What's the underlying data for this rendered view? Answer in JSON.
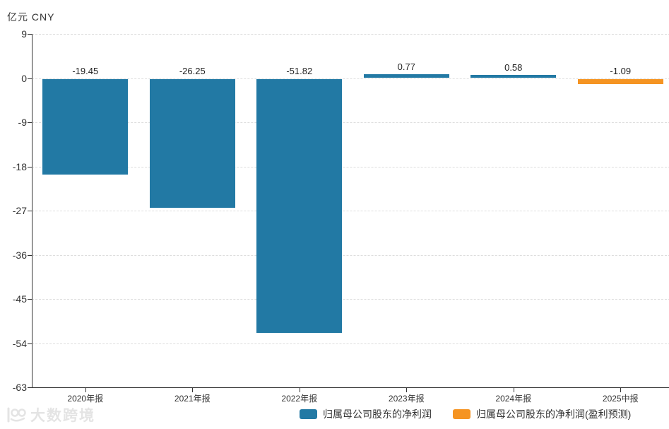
{
  "header": {
    "unit_label": "亿元 CNY"
  },
  "watermark": {
    "text": "大数跨境"
  },
  "chart_data": {
    "type": "bar",
    "title": "",
    "ylabel": "亿元 CNY",
    "xlabel": "",
    "categories": [
      "2020年报",
      "2021年报",
      "2022年报",
      "2023年报",
      "2024年报",
      "2025中报"
    ],
    "series": [
      {
        "name": "归属母公司股东的净利润",
        "color": "#2279a4",
        "values": [
          -19.45,
          -26.25,
          -51.82,
          0.77,
          0.58,
          null
        ]
      },
      {
        "name": "归属母公司股东的净利润(盈利预测)",
        "color": "#f59422",
        "values": [
          null,
          null,
          null,
          null,
          null,
          -1.09
        ]
      }
    ],
    "value_labels": [
      "-19.45",
      "-26.25",
      "-51.82",
      "0.77",
      "0.58",
      "-1.09"
    ],
    "yticks": [
      9,
      0,
      -9,
      -18,
      -27,
      -36,
      -45,
      -54,
      -63
    ],
    "ylim": [
      -63,
      9
    ],
    "grid": "horizontal-dashed",
    "legend_position": "bottom"
  },
  "legend": {
    "items": [
      {
        "label": "归属母公司股东的净利润",
        "color": "#2279a4"
      },
      {
        "label": "归属母公司股东的净利润(盈利预测)",
        "color": "#f59422"
      }
    ]
  }
}
